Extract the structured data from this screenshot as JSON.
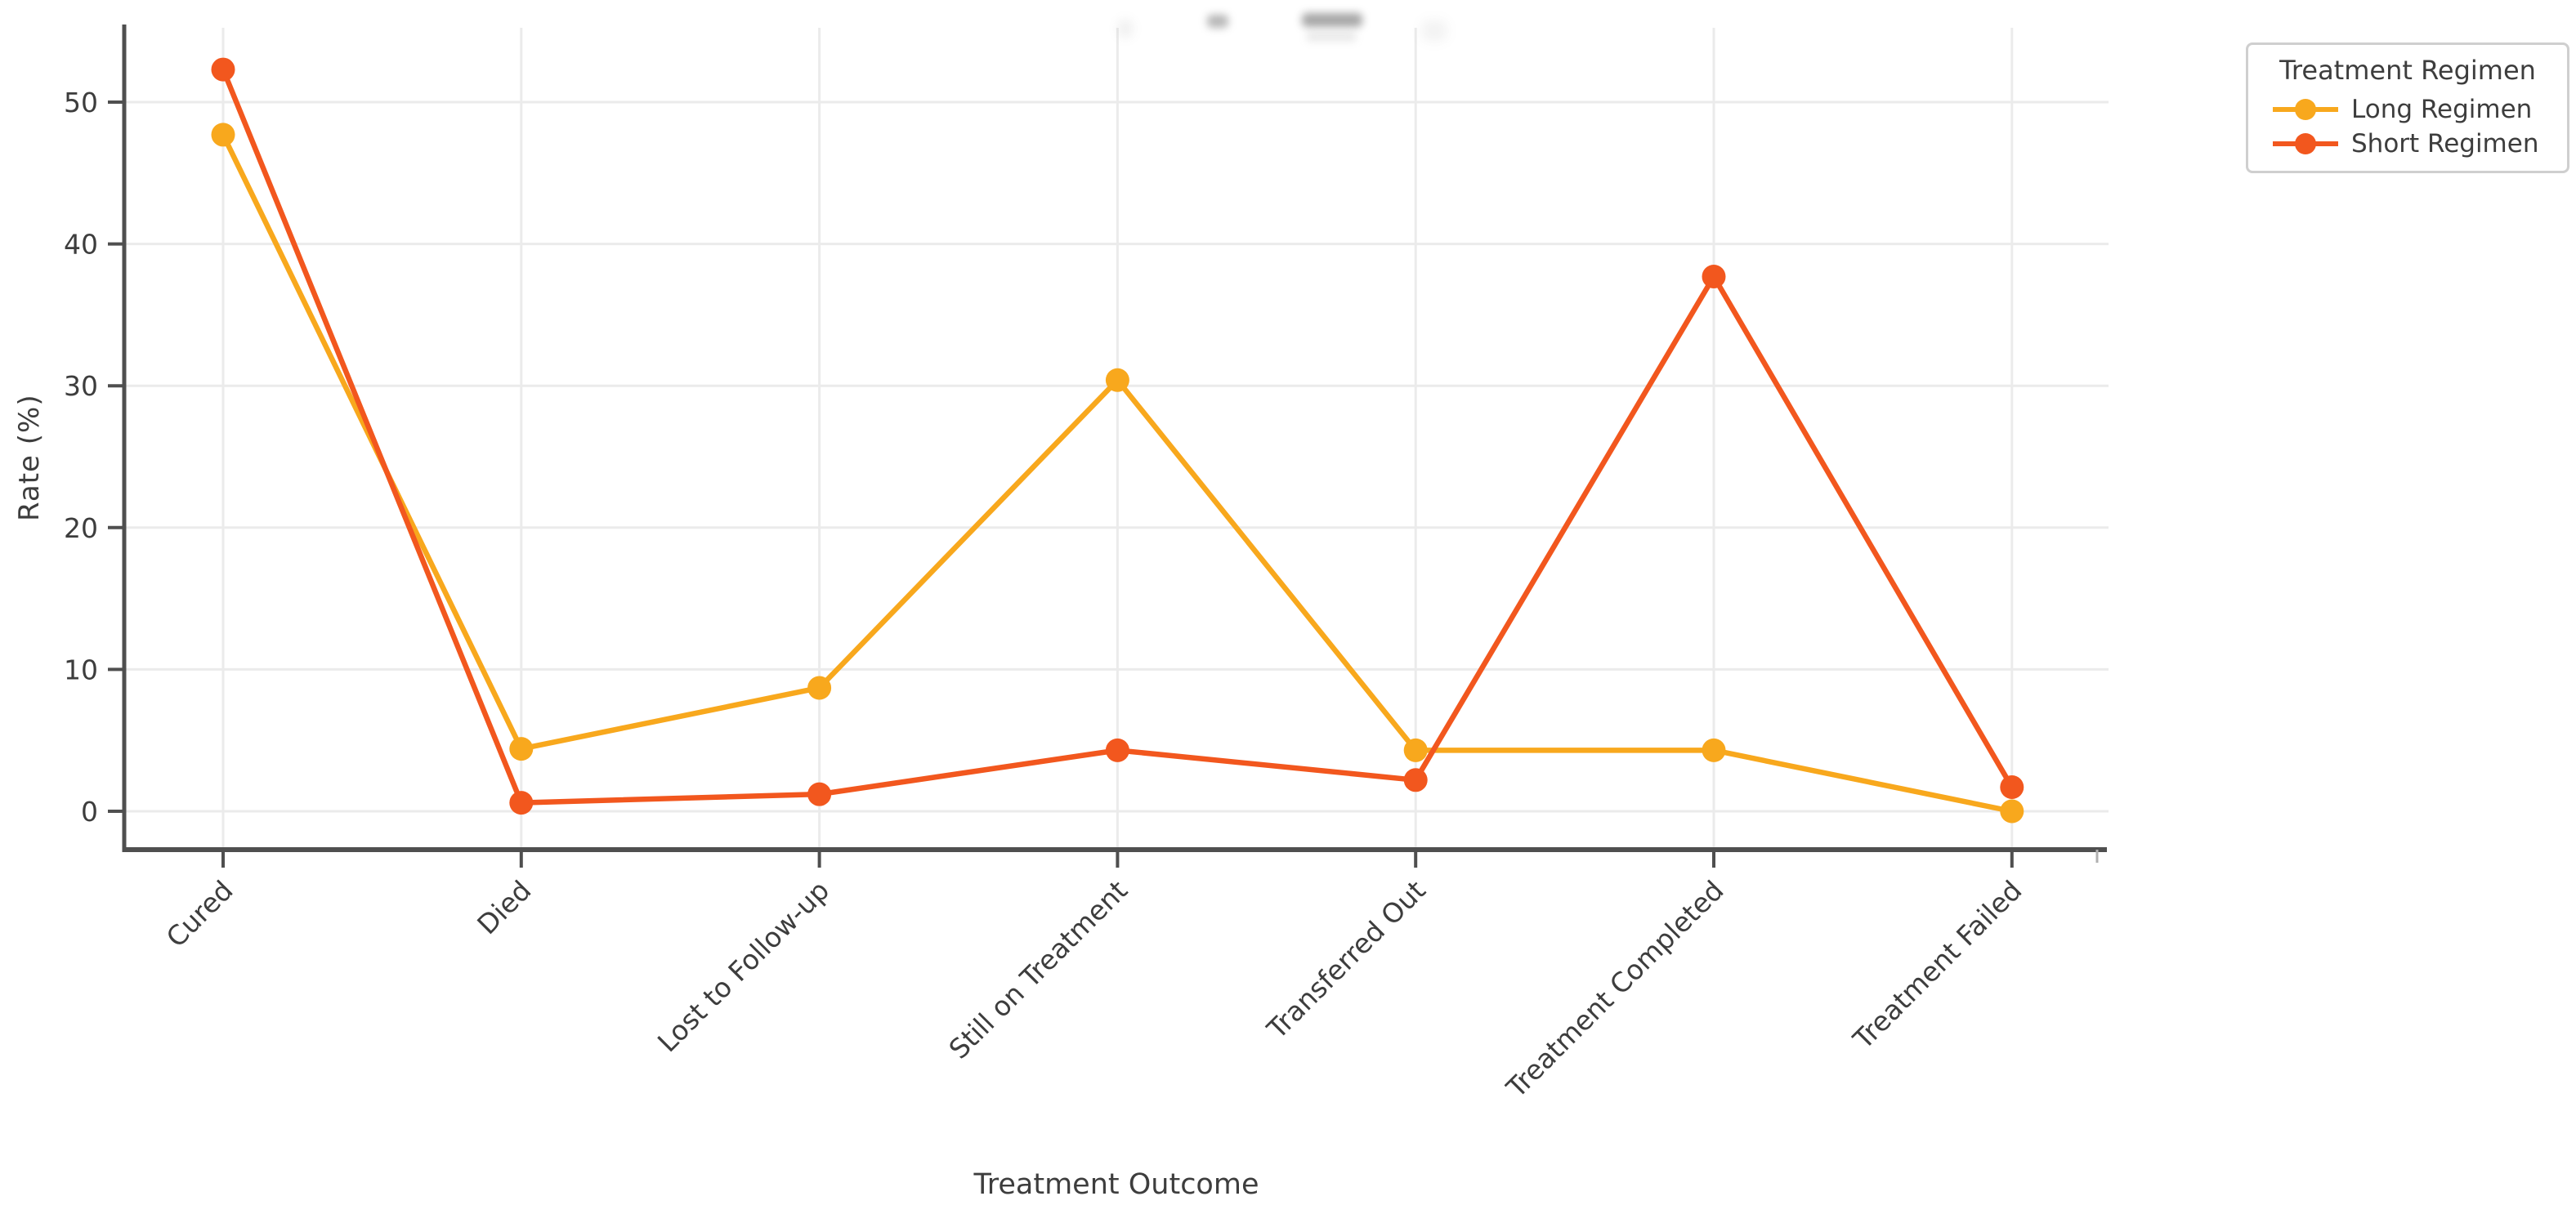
{
  "figure": {
    "background_color": "#ffffff",
    "axis_color": "#4f4f4f",
    "grid_color": "#ebebeb",
    "text_color": "#3d3d3d"
  },
  "legend": {
    "title": "Treatment Regimen",
    "position": "upper-right-outside"
  },
  "chart_data": {
    "type": "line",
    "categories": [
      "Cured",
      "Died",
      "Lost to Follow-up",
      "Still on Treatment",
      "Transferred Out",
      "Treatment Completed",
      "Treatment Failed"
    ],
    "series": [
      {
        "name": "Long Regimen",
        "color": "#F8A81D",
        "values": [
          47.7,
          4.4,
          8.7,
          30.4,
          4.3,
          4.3,
          0.0
        ]
      },
      {
        "name": "Short Regimen",
        "color": "#F2571E",
        "values": [
          52.3,
          0.6,
          1.2,
          4.3,
          2.2,
          37.7,
          1.7
        ]
      }
    ],
    "xlabel": "Treatment Outcome",
    "ylabel": "Rate (%)",
    "yticks": [
      0,
      10,
      20,
      30,
      40,
      50
    ],
    "ylim": [
      -2.7,
      55.2
    ],
    "grid": true,
    "legend_title": "Treatment Regimen",
    "marker": "circle",
    "unit": "%"
  }
}
